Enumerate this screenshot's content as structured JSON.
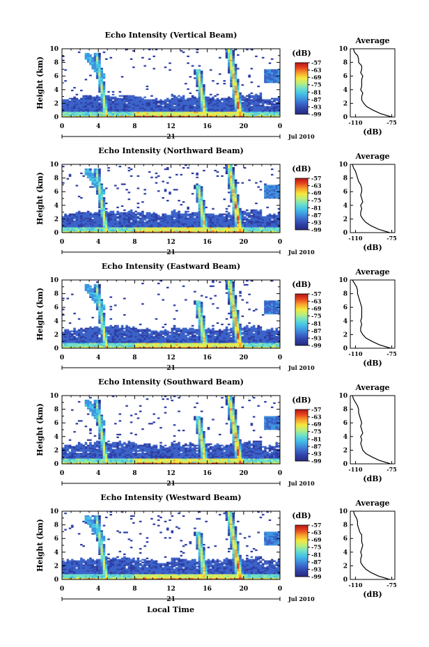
{
  "figure": {
    "xlabel": "Local Time",
    "day_label": "21",
    "date_label": "Jul 2010",
    "ylabel": "Height (km)",
    "colorbar_unit": "(dB)",
    "average_title": "Average",
    "average_xlabel": "(dB)"
  },
  "chart_data": [
    {
      "type": "heatmap",
      "title": "Echo Intensity (Vertical Beam)",
      "x_ticks": [
        "0",
        "4",
        "8",
        "12",
        "16",
        "20",
        "0"
      ],
      "xlim": [
        0,
        24
      ],
      "y_ticks": [
        "0",
        "2",
        "4",
        "6",
        "8",
        "10"
      ],
      "ylim": [
        0,
        10
      ],
      "colorbar_ticks": [
        "-57",
        "-63",
        "-69",
        "-75",
        "-81",
        "-87",
        "-93",
        "-99"
      ],
      "colorbar_range": [
        -99,
        -57
      ],
      "average_x_ticks": [
        "-110",
        "-75"
      ],
      "average_xlim": [
        -115,
        -72
      ],
      "average_y_ticks": [
        "0",
        "2",
        "4",
        "6",
        "8",
        "10"
      ],
      "average_profile": {
        "height_km": [
          0,
          0.5,
          1,
          1.5,
          2,
          2.5,
          3,
          3.5,
          4,
          4.5,
          5,
          5.5,
          6,
          6.5,
          7,
          7.5,
          8,
          8.5,
          9,
          9.5,
          10
        ],
        "db": [
          -75,
          -86,
          -93,
          -99,
          -102,
          -104,
          -104,
          -103,
          -105,
          -104,
          -104,
          -104,
          -103,
          -105,
          -104,
          -104,
          -107,
          -107,
          -108,
          -111,
          -112
        ]
      }
    },
    {
      "type": "heatmap",
      "title": "Echo Intensity (Northward Beam)",
      "x_ticks": [
        "0",
        "4",
        "8",
        "12",
        "16",
        "20",
        "0"
      ],
      "xlim": [
        0,
        24
      ],
      "y_ticks": [
        "0",
        "2",
        "4",
        "6",
        "8",
        "10"
      ],
      "ylim": [
        0,
        10
      ],
      "colorbar_ticks": [
        "-57",
        "-63",
        "-69",
        "-75",
        "-81",
        "-87",
        "-93",
        "-99"
      ],
      "colorbar_range": [
        -99,
        -57
      ],
      "average_x_ticks": [
        "-110",
        "-75"
      ],
      "average_xlim": [
        -115,
        -72
      ],
      "average_y_ticks": [
        "0",
        "2",
        "4",
        "6",
        "8",
        "10"
      ],
      "average_profile": {
        "height_km": [
          0,
          0.5,
          1,
          1.5,
          2,
          2.5,
          3,
          3.5,
          4,
          4.5,
          5,
          5.5,
          6,
          6.5,
          7,
          7.5,
          8,
          8.5,
          9,
          9.5,
          10
        ],
        "db": [
          -77,
          -88,
          -95,
          -100,
          -103,
          -105,
          -105,
          -104,
          -105,
          -103,
          -104,
          -105,
          -104,
          -104,
          -105,
          -107,
          -108,
          -109,
          -110,
          -112,
          -113
        ]
      }
    },
    {
      "type": "heatmap",
      "title": "Echo Intensity (Eastward Beam)",
      "x_ticks": [
        "0",
        "4",
        "8",
        "12",
        "16",
        "20",
        "0"
      ],
      "xlim": [
        0,
        24
      ],
      "y_ticks": [
        "0",
        "2",
        "4",
        "6",
        "8",
        "10"
      ],
      "ylim": [
        0,
        10
      ],
      "colorbar_ticks": [
        "-57",
        "-63",
        "-69",
        "-75",
        "-81",
        "-87",
        "-93",
        "-99"
      ],
      "colorbar_range": [
        -99,
        -57
      ],
      "average_x_ticks": [
        "-110",
        "-75"
      ],
      "average_xlim": [
        -115,
        -72
      ],
      "average_y_ticks": [
        "0",
        "2",
        "4",
        "6",
        "8",
        "10"
      ],
      "average_profile": {
        "height_km": [
          0,
          0.5,
          1,
          1.5,
          2,
          2.5,
          3,
          3.5,
          4,
          4.5,
          5,
          5.5,
          6,
          6.5,
          7,
          7.5,
          8,
          8.5,
          9,
          9.5,
          10
        ],
        "db": [
          -76,
          -87,
          -94,
          -100,
          -103,
          -105,
          -105,
          -104,
          -105,
          -104,
          -104,
          -104,
          -104,
          -105,
          -106,
          -107,
          -108,
          -108,
          -109,
          -111,
          -113
        ]
      }
    },
    {
      "type": "heatmap",
      "title": "Echo Intensity (Southward Beam)",
      "x_ticks": [
        "0",
        "4",
        "8",
        "12",
        "16",
        "20",
        "0"
      ],
      "xlim": [
        0,
        24
      ],
      "y_ticks": [
        "0",
        "2",
        "4",
        "6",
        "8",
        "10"
      ],
      "ylim": [
        0,
        10
      ],
      "colorbar_ticks": [
        "-57",
        "-63",
        "-69",
        "-75",
        "-81",
        "-87",
        "-93",
        "-99"
      ],
      "colorbar_range": [
        -99,
        -57
      ],
      "average_x_ticks": [
        "-110",
        "-75"
      ],
      "average_xlim": [
        -115,
        -72
      ],
      "average_y_ticks": [
        "0",
        "2",
        "4",
        "6",
        "8",
        "10"
      ],
      "average_profile": {
        "height_km": [
          0,
          0.5,
          1,
          1.5,
          2,
          2.5,
          3,
          3.5,
          4,
          4.5,
          5,
          5.5,
          6,
          6.5,
          7,
          7.5,
          8,
          8.5,
          9,
          9.5,
          10
        ],
        "db": [
          -76,
          -87,
          -94,
          -100,
          -103,
          -104,
          -105,
          -104,
          -105,
          -103,
          -104,
          -105,
          -104,
          -105,
          -106,
          -107,
          -107,
          -108,
          -110,
          -112,
          -113
        ]
      }
    },
    {
      "type": "heatmap",
      "title": "Echo Intensity (Westward Beam)",
      "x_ticks": [
        "0",
        "4",
        "8",
        "12",
        "16",
        "20",
        "0"
      ],
      "xlim": [
        0,
        24
      ],
      "y_ticks": [
        "0",
        "2",
        "4",
        "6",
        "8",
        "10"
      ],
      "ylim": [
        0,
        10
      ],
      "colorbar_ticks": [
        "-57",
        "-63",
        "-69",
        "-75",
        "-81",
        "-87",
        "-93",
        "-99"
      ],
      "colorbar_range": [
        -99,
        -57
      ],
      "average_x_ticks": [
        "-110",
        "-75"
      ],
      "average_xlim": [
        -115,
        -72
      ],
      "average_y_ticks": [
        "0",
        "2",
        "4",
        "6",
        "8",
        "10"
      ],
      "average_profile": {
        "height_km": [
          0,
          0.5,
          1,
          1.5,
          2,
          2.5,
          3,
          3.5,
          4,
          4.5,
          5,
          5.5,
          6,
          6.5,
          7,
          7.5,
          8,
          8.5,
          9,
          9.5,
          10
        ],
        "db": [
          -77,
          -88,
          -95,
          -100,
          -103,
          -105,
          -105,
          -104,
          -105,
          -104,
          -103,
          -104,
          -104,
          -104,
          -106,
          -107,
          -108,
          -108,
          -109,
          -111,
          -112
        ]
      }
    }
  ],
  "colors": {
    "colormap": [
      "#262a7e",
      "#2f3fa4",
      "#3b63c9",
      "#3f95df",
      "#45c3e6",
      "#6fe0c8",
      "#b8ef7e",
      "#f6e83e",
      "#f8a02c",
      "#e6451f",
      "#b51616"
    ]
  }
}
